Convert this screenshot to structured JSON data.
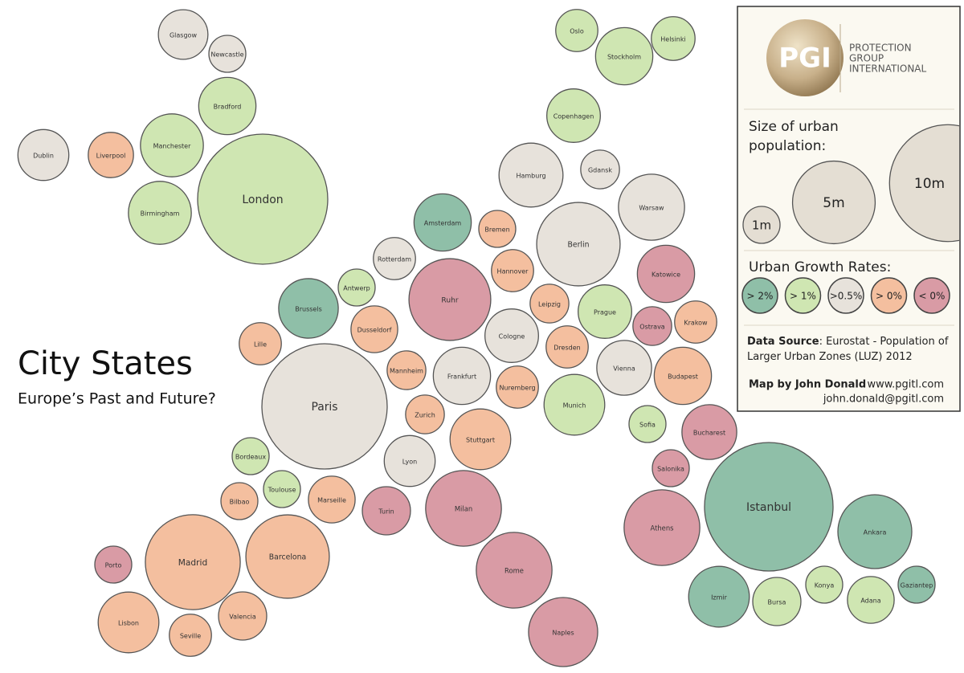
{
  "title": "City States",
  "subtitle": "Europe’s Past and Future?",
  "logo": {
    "mark": "PGI",
    "name": [
      "PROTECTION",
      "GROUP",
      "INTERNATIONAL"
    ]
  },
  "legend": {
    "size_title": "Size of urban population:",
    "sizes": [
      {
        "value": 1,
        "label": "1m"
      },
      {
        "value": 5,
        "label": "5m"
      },
      {
        "value": 10,
        "label": "10m"
      }
    ],
    "growth_title": "Urban Growth Rates:",
    "growth": [
      {
        "label": "> 2%",
        "color": "#8fbfa8"
      },
      {
        "label": "> 1%",
        "color": "#cfe6b2"
      },
      {
        "label": ">0.5%",
        "color": "#e7e2db"
      },
      {
        "label": "> 0%",
        "color": "#f4bf9f"
      },
      {
        "label": "< 0%",
        "color": "#d99ba5"
      }
    ]
  },
  "source": {
    "label": "Data Source",
    "text": ": Eurostat  - Population of Larger Urban Zones (LUZ) 2012"
  },
  "credit": "Map by John Donald",
  "website": "www.pgitl.com",
  "email": "john.donald@pgitl.com",
  "cities": [
    {
      "name": "Glasgow",
      "population": 1.8,
      "growth": ">0.5%"
    },
    {
      "name": "Newcastle",
      "population": 1.0,
      "growth": ">0.5%"
    },
    {
      "name": "Bradford",
      "population": 2.4,
      "growth": "> 1%"
    },
    {
      "name": "Dublin",
      "population": 1.9,
      "growth": ">0.5%"
    },
    {
      "name": "Liverpool",
      "population": 1.5,
      "growth": "> 0%"
    },
    {
      "name": "Manchester",
      "population": 2.9,
      "growth": "> 1%"
    },
    {
      "name": "London",
      "population": 12.4,
      "growth": "> 1%"
    },
    {
      "name": "Birmingham",
      "population": 2.9,
      "growth": "> 1%"
    },
    {
      "name": "Oslo",
      "population": 1.3,
      "growth": "> 1%"
    },
    {
      "name": "Stockholm",
      "population": 2.4,
      "growth": "> 1%"
    },
    {
      "name": "Helsinki",
      "population": 1.4,
      "growth": "> 1%"
    },
    {
      "name": "Copenhagen",
      "population": 2.1,
      "growth": "> 1%"
    },
    {
      "name": "Hamburg",
      "population": 3.0,
      "growth": ">0.5%"
    },
    {
      "name": "Gdansk",
      "population": 1.1,
      "growth": ">0.5%"
    },
    {
      "name": "Warsaw",
      "population": 3.2,
      "growth": ">0.5%"
    },
    {
      "name": "Amsterdam",
      "population": 2.4,
      "growth": "> 2%"
    },
    {
      "name": "Bremen",
      "population": 1.0,
      "growth": "> 0%"
    },
    {
      "name": "Berlin",
      "population": 5.1,
      "growth": ">0.5%"
    },
    {
      "name": "Rotterdam",
      "population": 1.3,
      "growth": ">0.5%"
    },
    {
      "name": "Hannover",
      "population": 1.3,
      "growth": "> 0%"
    },
    {
      "name": "Katowice",
      "population": 2.4,
      "growth": "< 0%"
    },
    {
      "name": "Antwerp",
      "population": 1.0,
      "growth": "> 1%"
    },
    {
      "name": "Ruhr",
      "population": 4.9,
      "growth": "< 0%"
    },
    {
      "name": "Brussels",
      "population": 2.6,
      "growth": "> 2%"
    },
    {
      "name": "Leipzig",
      "population": 1.1,
      "growth": "> 0%"
    },
    {
      "name": "Prague",
      "population": 2.1,
      "growth": "> 1%"
    },
    {
      "name": "Ostrava",
      "population": 1.1,
      "growth": "< 0%"
    },
    {
      "name": "Krakow",
      "population": 1.3,
      "growth": "> 0%"
    },
    {
      "name": "Dusseldorf",
      "population": 1.6,
      "growth": "> 0%"
    },
    {
      "name": "Cologne",
      "population": 2.1,
      "growth": ">0.5%"
    },
    {
      "name": "Lille",
      "population": 1.3,
      "growth": "> 0%"
    },
    {
      "name": "Dresden",
      "population": 1.3,
      "growth": "> 0%"
    },
    {
      "name": "Mannheim",
      "population": 1.1,
      "growth": "> 0%"
    },
    {
      "name": "Frankfurt",
      "population": 2.4,
      "growth": ">0.5%"
    },
    {
      "name": "Vienna",
      "population": 2.2,
      "growth": ">0.5%"
    },
    {
      "name": "Budapest",
      "population": 2.4,
      "growth": "> 0%"
    },
    {
      "name": "Nuremberg",
      "population": 1.3,
      "growth": "> 0%"
    },
    {
      "name": "Paris",
      "population": 11.5,
      "growth": ">0.5%"
    },
    {
      "name": "Munich",
      "population": 2.7,
      "growth": "> 1%"
    },
    {
      "name": "Zurich",
      "population": 1.1,
      "growth": "> 0%"
    },
    {
      "name": "Sofia",
      "population": 1.0,
      "growth": "> 1%"
    },
    {
      "name": "Bucharest",
      "population": 2.2,
      "growth": "< 0%"
    },
    {
      "name": "Stuttgart",
      "population": 2.7,
      "growth": "> 0%"
    },
    {
      "name": "Lyon",
      "population": 1.9,
      "growth": ">0.5%"
    },
    {
      "name": "Salonika",
      "population": 1.0,
      "growth": "< 0%"
    },
    {
      "name": "Bordeaux",
      "population": 1.0,
      "growth": "> 1%"
    },
    {
      "name": "Toulouse",
      "population": 1.0,
      "growth": "> 1%"
    },
    {
      "name": "Marseille",
      "population": 1.6,
      "growth": "> 0%"
    },
    {
      "name": "Bilbao",
      "population": 1.0,
      "growth": "> 0%"
    },
    {
      "name": "Turin",
      "population": 1.7,
      "growth": "< 0%"
    },
    {
      "name": "Milan",
      "population": 4.2,
      "growth": "< 0%"
    },
    {
      "name": "Istanbul",
      "population": 12.1,
      "growth": "> 2%"
    },
    {
      "name": "Athens",
      "population": 4.2,
      "growth": "< 0%"
    },
    {
      "name": "Ankara",
      "population": 4.0,
      "growth": "> 2%"
    },
    {
      "name": "Porto",
      "population": 1.0,
      "growth": "< 0%"
    },
    {
      "name": "Madrid",
      "population": 6.6,
      "growth": "> 0%"
    },
    {
      "name": "Barcelona",
      "population": 5.1,
      "growth": "> 0%"
    },
    {
      "name": "Rome",
      "population": 4.2,
      "growth": "< 0%"
    },
    {
      "name": "Izmir",
      "population": 2.7,
      "growth": "> 2%"
    },
    {
      "name": "Bursa",
      "population": 1.7,
      "growth": "> 1%"
    },
    {
      "name": "Konya",
      "population": 1.0,
      "growth": "> 1%"
    },
    {
      "name": "Adana",
      "population": 1.6,
      "growth": "> 1%"
    },
    {
      "name": "Gaziantep",
      "population": 1.0,
      "growth": "> 2%"
    },
    {
      "name": "Lisbon",
      "population": 2.7,
      "growth": "> 0%"
    },
    {
      "name": "Valencia",
      "population": 1.7,
      "growth": "> 0%"
    },
    {
      "name": "Seville",
      "population": 1.3,
      "growth": "> 0%"
    },
    {
      "name": "Naples",
      "population": 3.5,
      "growth": "< 0%"
    }
  ]
}
